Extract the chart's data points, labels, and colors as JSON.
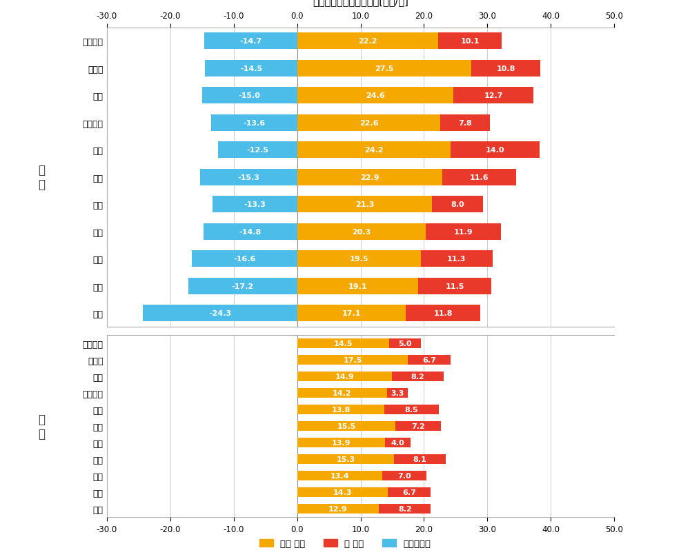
{
  "title": "年間のエネルギーコスト[万円/年]",
  "section_label_top": "劒\n爪",
  "section_label_bottom": "如\n撃",
  "xlim": [
    -30,
    50
  ],
  "xticks": [
    -30.0,
    -20.0,
    -10.0,
    0.0,
    10.0,
    20.0,
    30.0,
    40.0,
    50.0
  ],
  "colors": {
    "housing": "#F5A800",
    "car": "#E8392A",
    "solar": "#4BBDE8"
  },
  "top_categories": [
    "全国平均",
    "北海道",
    "東北",
    "関東甲信",
    "北陸",
    "東海",
    "近畿",
    "中国",
    "四国",
    "九州",
    "沖縄"
  ],
  "top_solar": [
    -14.7,
    -14.5,
    -15.0,
    -13.6,
    -12.5,
    -15.3,
    -13.3,
    -14.8,
    -16.6,
    -17.2,
    -24.3
  ],
  "top_housing": [
    22.2,
    27.5,
    24.6,
    22.6,
    24.2,
    22.9,
    21.3,
    20.3,
    19.5,
    19.1,
    17.1
  ],
  "top_car": [
    10.1,
    10.8,
    12.7,
    7.8,
    14.0,
    11.6,
    8.0,
    11.9,
    11.3,
    11.5,
    11.8
  ],
  "bottom_categories": [
    "全国平均",
    "北海道",
    "東北",
    "関東甲信",
    "北陸",
    "東海",
    "近畿",
    "中国",
    "四国",
    "九州",
    "沖縄"
  ],
  "bottom_housing": [
    14.5,
    17.5,
    14.9,
    14.2,
    13.8,
    15.5,
    13.9,
    15.3,
    13.4,
    14.3,
    12.9
  ],
  "bottom_car": [
    5.0,
    6.7,
    8.2,
    3.3,
    8.5,
    7.2,
    4.0,
    8.1,
    7.0,
    6.7,
    8.2
  ],
  "bar_height": 0.6,
  "legend_labels": [
    "住宅 合計",
    "車 合計",
    "太陽光売電"
  ],
  "background_color": "#ffffff",
  "grid_color": "#cccccc",
  "text_color": "#333333",
  "label_fontsize": 8.0,
  "tick_fontsize": 9.0,
  "title_fontsize": 10.5
}
